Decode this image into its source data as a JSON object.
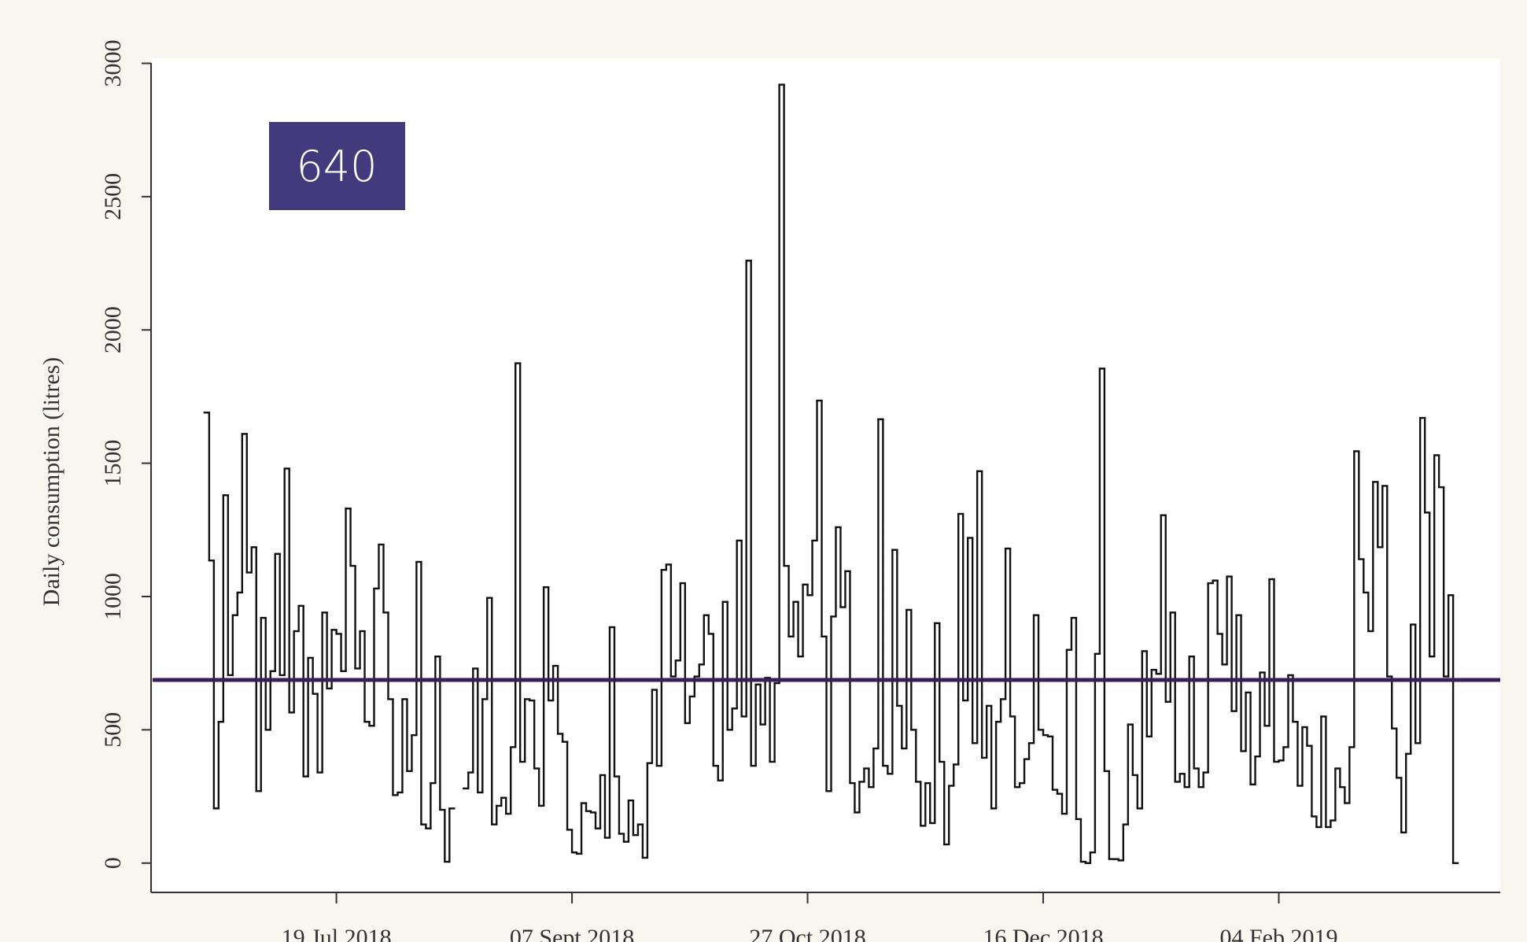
{
  "chart_data": {
    "type": "step",
    "y_label": "Daily consumption (litres)",
    "annotation": "640",
    "annotation_color": "#433a7e",
    "reference_line": 687,
    "reference_color": "#3b1d57",
    "color": "#111111",
    "ylim": [
      -110,
      3000
    ],
    "yticks": [
      0,
      500,
      1000,
      1500,
      2000,
      2500,
      3000
    ],
    "xlim": [
      "2018-06-10",
      "2019-03-23"
    ],
    "xticks": [
      {
        "value": "2018-07-19",
        "label": "19 Jul 2018"
      },
      {
        "value": "2018-09-07",
        "label": "07 Sept 2018"
      },
      {
        "value": "2018-10-27",
        "label": "27 Oct 2018"
      },
      {
        "value": "2018-12-16",
        "label": "16 Dec 2018"
      },
      {
        "value": "2019-02-04",
        "label": "04 Feb 2019"
      }
    ],
    "x": [
      "2018-06-21",
      "2018-06-22",
      "2018-06-23",
      "2018-06-24",
      "2018-06-25",
      "2018-06-26",
      "2018-06-27",
      "2018-06-28",
      "2018-06-29",
      "2018-06-30",
      "2018-07-01",
      "2018-07-02",
      "2018-07-03",
      "2018-07-04",
      "2018-07-05",
      "2018-07-06",
      "2018-07-07",
      "2018-07-08",
      "2018-07-09",
      "2018-07-10",
      "2018-07-11",
      "2018-07-12",
      "2018-07-13",
      "2018-07-14",
      "2018-07-15",
      "2018-07-16",
      "2018-07-17",
      "2018-07-18",
      "2018-07-19",
      "2018-07-20",
      "2018-07-21",
      "2018-07-22",
      "2018-07-23",
      "2018-07-24",
      "2018-07-25",
      "2018-07-26",
      "2018-07-27",
      "2018-07-28",
      "2018-07-29",
      "2018-07-30",
      "2018-07-31",
      "2018-08-01",
      "2018-08-02",
      "2018-08-03",
      "2018-08-04",
      "2018-08-05",
      "2018-08-06",
      "2018-08-07",
      "2018-08-08",
      "2018-08-09",
      "2018-08-10",
      "2018-08-11",
      "2018-08-12",
      "2018-08-13",
      "2018-08-14",
      "2018-08-15",
      "2018-08-16",
      "2018-08-17",
      "2018-08-18",
      "2018-08-19",
      "2018-08-20",
      "2018-08-21",
      "2018-08-22",
      "2018-08-23",
      "2018-08-24",
      "2018-08-25",
      "2018-08-26",
      "2018-08-27",
      "2018-08-28",
      "2018-08-29",
      "2018-08-30",
      "2018-08-31",
      "2018-09-01",
      "2018-09-02",
      "2018-09-03",
      "2018-09-04",
      "2018-09-05",
      "2018-09-06",
      "2018-09-07",
      "2018-09-08",
      "2018-09-09",
      "2018-09-10",
      "2018-09-11",
      "2018-09-12",
      "2018-09-13",
      "2018-09-14",
      "2018-09-15",
      "2018-09-16",
      "2018-09-17",
      "2018-09-18",
      "2018-09-19",
      "2018-09-20",
      "2018-09-21",
      "2018-09-22",
      "2018-09-23",
      "2018-09-24",
      "2018-09-25",
      "2018-09-26",
      "2018-09-27",
      "2018-09-28",
      "2018-09-29",
      "2018-09-30",
      "2018-10-01",
      "2018-10-02",
      "2018-10-03",
      "2018-10-04",
      "2018-10-05",
      "2018-10-06",
      "2018-10-07",
      "2018-10-08",
      "2018-10-09",
      "2018-10-10",
      "2018-10-11",
      "2018-10-12",
      "2018-10-13",
      "2018-10-14",
      "2018-10-15",
      "2018-10-16",
      "2018-10-17",
      "2018-10-18",
      "2018-10-19",
      "2018-10-20",
      "2018-10-21",
      "2018-10-22",
      "2018-10-23",
      "2018-10-24",
      "2018-10-25",
      "2018-10-26",
      "2018-10-27",
      "2018-10-28",
      "2018-10-29",
      "2018-10-30",
      "2018-10-31",
      "2018-11-01",
      "2018-11-02",
      "2018-11-03",
      "2018-11-04",
      "2018-11-05",
      "2018-11-06",
      "2018-11-07",
      "2018-11-08",
      "2018-11-09",
      "2018-11-10",
      "2018-11-11",
      "2018-11-12",
      "2018-11-13",
      "2018-11-14",
      "2018-11-15",
      "2018-11-16",
      "2018-11-17",
      "2018-11-18",
      "2018-11-19",
      "2018-11-20",
      "2018-11-21",
      "2018-11-22",
      "2018-11-23",
      "2018-11-24",
      "2018-11-25",
      "2018-11-26",
      "2018-11-27",
      "2018-11-28",
      "2018-11-29",
      "2018-11-30",
      "2018-12-01",
      "2018-12-02",
      "2018-12-03",
      "2018-12-04",
      "2018-12-05",
      "2018-12-06",
      "2018-12-07",
      "2018-12-08",
      "2018-12-09",
      "2018-12-10",
      "2018-12-11",
      "2018-12-12",
      "2018-12-13",
      "2018-12-14",
      "2018-12-15",
      "2018-12-16",
      "2018-12-17",
      "2018-12-18",
      "2018-12-19",
      "2018-12-20",
      "2018-12-21",
      "2018-12-22",
      "2018-12-23",
      "2018-12-24",
      "2018-12-25",
      "2018-12-26",
      "2018-12-27",
      "2018-12-28",
      "2018-12-29",
      "2018-12-30",
      "2018-12-31",
      "2019-01-01",
      "2019-01-02",
      "2019-01-03",
      "2019-01-04",
      "2019-01-05",
      "2019-01-06",
      "2019-01-07",
      "2019-01-08",
      "2019-01-09",
      "2019-01-10",
      "2019-01-11",
      "2019-01-12",
      "2019-01-13",
      "2019-01-14",
      "2019-01-15",
      "2019-01-16",
      "2019-01-17",
      "2019-01-18",
      "2019-01-19",
      "2019-01-20",
      "2019-01-21",
      "2019-01-22",
      "2019-01-23",
      "2019-01-24",
      "2019-01-25",
      "2019-01-26",
      "2019-01-27",
      "2019-01-28",
      "2019-01-29",
      "2019-01-30",
      "2019-01-31",
      "2019-02-01",
      "2019-02-02",
      "2019-02-03",
      "2019-02-04",
      "2019-02-05",
      "2019-02-06",
      "2019-02-07",
      "2019-02-08",
      "2019-02-09",
      "2019-02-10",
      "2019-02-11",
      "2019-02-12",
      "2019-02-13",
      "2019-02-14",
      "2019-02-15",
      "2019-02-16",
      "2019-02-17",
      "2019-02-18",
      "2019-02-19",
      "2019-02-20",
      "2019-02-21",
      "2019-02-22",
      "2019-02-23",
      "2019-02-24",
      "2019-02-25",
      "2019-02-26",
      "2019-02-27",
      "2019-02-28",
      "2019-03-01",
      "2019-03-02",
      "2019-03-03",
      "2019-03-04",
      "2019-03-05",
      "2019-03-06",
      "2019-03-07",
      "2019-03-08",
      "2019-03-09",
      "2019-03-10",
      "2019-03-11",
      "2019-03-12",
      "2019-03-13"
    ],
    "values": [
      1690,
      1135,
      205,
      530,
      1380,
      705,
      930,
      1015,
      1610,
      1090,
      1185,
      270,
      920,
      500,
      720,
      1160,
      705,
      1480,
      565,
      870,
      965,
      325,
      770,
      635,
      340,
      940,
      655,
      875,
      860,
      720,
      1330,
      1115,
      730,
      870,
      530,
      515,
      1030,
      1195,
      940,
      615,
      255,
      265,
      615,
      345,
      480,
      1130,
      145,
      130,
      300,
      775,
      200,
      5,
      205,
      null,
      null,
      280,
      340,
      730,
      265,
      615,
      995,
      145,
      215,
      245,
      185,
      435,
      1875,
      380,
      615,
      610,
      355,
      215,
      1035,
      610,
      740,
      485,
      455,
      125,
      40,
      35,
      225,
      195,
      190,
      130,
      330,
      95,
      885,
      325,
      110,
      80,
      235,
      105,
      145,
      20,
      375,
      650,
      365,
      1100,
      1120,
      700,
      760,
      1050,
      525,
      625,
      700,
      745,
      930,
      860,
      365,
      310,
      980,
      500,
      580,
      1210,
      550,
      2260,
      365,
      670,
      520,
      695,
      380,
      675,
      2920,
      1115,
      850,
      980,
      775,
      1045,
      1005,
      1210,
      1735,
      850,
      270,
      925,
      1260,
      960,
      1095,
      300,
      190,
      305,
      355,
      285,
      430,
      1665,
      365,
      335,
      1175,
      590,
      430,
      950,
      500,
      305,
      140,
      300,
      150,
      900,
      380,
      70,
      290,
      370,
      1310,
      610,
      1220,
      450,
      1470,
      395,
      590,
      205,
      530,
      615,
      1180,
      550,
      285,
      300,
      390,
      450,
      930,
      500,
      480,
      475,
      275,
      260,
      185,
      800,
      920,
      165,
      5,
      0,
      40,
      785,
      1855,
      345,
      15,
      15,
      10,
      145,
      520,
      330,
      205,
      795,
      475,
      725,
      710,
      1305,
      605,
      940,
      305,
      335,
      285,
      775,
      355,
      285,
      340,
      1050,
      1060,
      860,
      745,
      1075,
      570,
      930,
      420,
      640,
      295,
      400,
      715,
      515,
      1065,
      380,
      385,
      435,
      705,
      530,
      290,
      510,
      440,
      175,
      135,
      550,
      135,
      160,
      355,
      285,
      225,
      435,
      1545,
      1140,
      1015,
      870,
      1430,
      1185,
      1415,
      700,
      505,
      320,
      115,
      410,
      895,
      450,
      1670,
      1315,
      775,
      1530,
      1410,
      700,
      1005,
      0
    ]
  }
}
